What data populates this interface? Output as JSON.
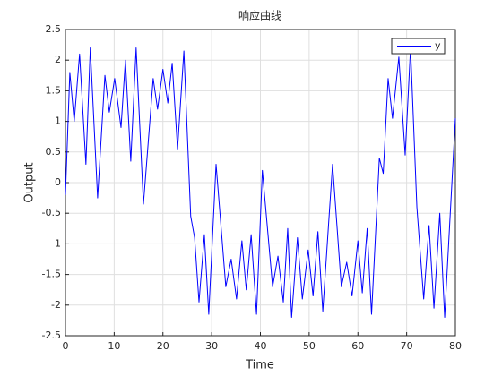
{
  "chart_data": {
    "type": "line",
    "title": "响应曲线",
    "x_label": "Time",
    "y_label": "Output",
    "x": [
      0,
      0.9,
      1.8,
      2.9,
      4.2,
      5.1,
      6.6,
      8.1,
      9.0,
      10.1,
      11.4,
      12.3,
      13.4,
      14.5,
      16.0,
      18.0,
      18.9,
      20.0,
      21.0,
      21.9,
      23.0,
      24.3,
      25.7,
      26.5,
      27.4,
      28.5,
      29.4,
      30.9,
      32.9,
      34.0,
      35.1,
      36.2,
      37.1,
      38.1,
      39.2,
      40.4,
      42.5,
      43.6,
      44.7,
      45.6,
      46.4,
      47.6,
      48.6,
      49.8,
      50.8,
      51.8,
      52.8,
      54.8,
      56.6,
      57.7,
      58.8,
      60.0,
      60.9,
      61.9,
      62.8,
      64.4,
      65.2,
      66.2,
      67.1,
      68.4,
      69.7,
      70.8,
      72.1,
      73.5,
      74.6,
      75.6,
      76.8,
      77.8,
      80
    ],
    "series": [
      {
        "name": "y",
        "color": "#0000ff",
        "values": [
          -0.2,
          1.8,
          1.0,
          2.1,
          0.3,
          2.2,
          -0.25,
          1.75,
          1.15,
          1.7,
          0.9,
          2.0,
          0.35,
          2.2,
          -0.35,
          1.7,
          1.2,
          1.85,
          1.3,
          1.95,
          0.55,
          2.15,
          -0.55,
          -0.9,
          -1.95,
          -0.85,
          -2.15,
          0.3,
          -1.7,
          -1.25,
          -1.9,
          -0.95,
          -1.75,
          -0.85,
          -2.15,
          0.2,
          -1.7,
          -1.2,
          -1.95,
          -0.75,
          -2.2,
          -0.9,
          -1.9,
          -1.1,
          -1.85,
          -0.8,
          -2.1,
          0.3,
          -1.7,
          -1.3,
          -1.85,
          -0.95,
          -1.8,
          -0.75,
          -2.15,
          0.4,
          0.15,
          1.7,
          1.05,
          2.05,
          0.45,
          2.2,
          -0.4,
          -1.9,
          -0.7,
          -2.05,
          -0.5,
          -2.2,
          1.05
        ]
      }
    ],
    "xlim": [
      0,
      80
    ],
    "ylim": [
      -2.5,
      2.5
    ],
    "xticks": [
      0,
      10,
      20,
      30,
      40,
      50,
      60,
      70,
      80
    ],
    "yticks": [
      -2.5,
      -2,
      -1.5,
      -1,
      -0.5,
      0,
      0.5,
      1,
      1.5,
      2,
      2.5
    ],
    "grid": true,
    "legend": "northeast"
  }
}
